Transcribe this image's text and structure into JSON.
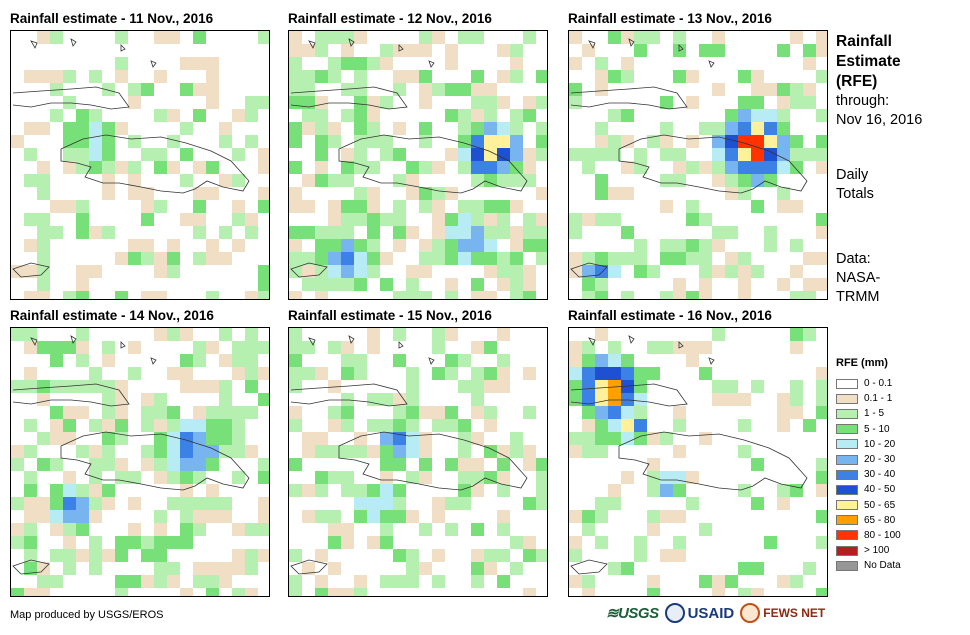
{
  "panels": [
    {
      "title": "Rainfall estimate - 11 Nov., 2016",
      "day": 11
    },
    {
      "title": "Rainfall estimate - 12 Nov., 2016",
      "day": 12
    },
    {
      "title": "Rainfall estimate - 13 Nov., 2016",
      "day": 13
    },
    {
      "title": "Rainfall estimate - 14 Nov., 2016",
      "day": 14
    },
    {
      "title": "Rainfall estimate - 15 Nov., 2016",
      "day": 15
    },
    {
      "title": "Rainfall estimate - 16 Nov., 2016",
      "day": 16
    }
  ],
  "side": {
    "title_line1": "Rainfall",
    "title_line2": "Estimate",
    "title_line3": "(RFE)",
    "through": "through:",
    "date": "Nov 16, 2016",
    "daily": "Daily",
    "totals": "Totals",
    "data_label": "Data:",
    "source1": "NASA-",
    "source2": "TRMM"
  },
  "legend": {
    "title": "RFE (mm)",
    "items": [
      {
        "label": "0 - 0.1",
        "color": "#ffffff"
      },
      {
        "label": "0.1 - 1",
        "color": "#f0dfc4"
      },
      {
        "label": "1 - 5",
        "color": "#b6f0b0"
      },
      {
        "label": "5 - 10",
        "color": "#78e078"
      },
      {
        "label": "10 - 20",
        "color": "#b8ecf4"
      },
      {
        "label": "20 - 30",
        "color": "#78b4f0"
      },
      {
        "label": "30 - 40",
        "color": "#3c82e6"
      },
      {
        "label": "40 - 50",
        "color": "#1e50d2"
      },
      {
        "label": "50 - 65",
        "color": "#fff09a"
      },
      {
        "label": "65 - 80",
        "color": "#ffa000"
      },
      {
        "label": "80 - 100",
        "color": "#ff3200"
      },
      {
        "label": "> 100",
        "color": "#b41e1e"
      },
      {
        "label": "No Data",
        "color": "#969696"
      }
    ]
  },
  "credit": "Map produced by USGS/EROS",
  "logos": {
    "usgs": "USGS",
    "usaid": "USAID",
    "fews": "FEWS NET"
  }
}
